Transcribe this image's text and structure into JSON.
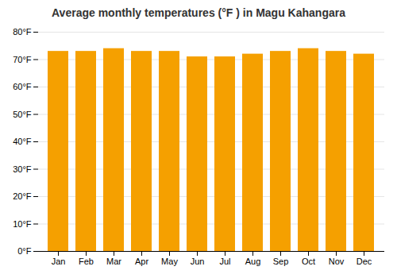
{
  "chart_data": {
    "type": "bar",
    "title": "Average monthly temperatures (°F ) in Magu Kahangara",
    "categories": [
      "Jan",
      "Feb",
      "Mar",
      "Apr",
      "May",
      "Jun",
      "Jul",
      "Aug",
      "Sep",
      "Oct",
      "Nov",
      "Dec"
    ],
    "values": [
      73,
      73,
      74,
      73,
      73,
      71,
      71,
      72,
      73,
      74,
      73,
      72
    ],
    "color": "#F5A000",
    "ylim": [
      0,
      80
    ],
    "yticks": [
      {
        "value": 0,
        "label": "0°F"
      },
      {
        "value": 10,
        "label": "10°F"
      },
      {
        "value": 20,
        "label": "20°F"
      },
      {
        "value": 30,
        "label": "30°F"
      },
      {
        "value": 40,
        "label": "40°F"
      },
      {
        "value": 50,
        "label": "50°F"
      },
      {
        "value": 60,
        "label": "60°F"
      },
      {
        "value": 70,
        "label": "70°F"
      },
      {
        "value": 80,
        "label": "80°F"
      }
    ],
    "grid": true
  }
}
